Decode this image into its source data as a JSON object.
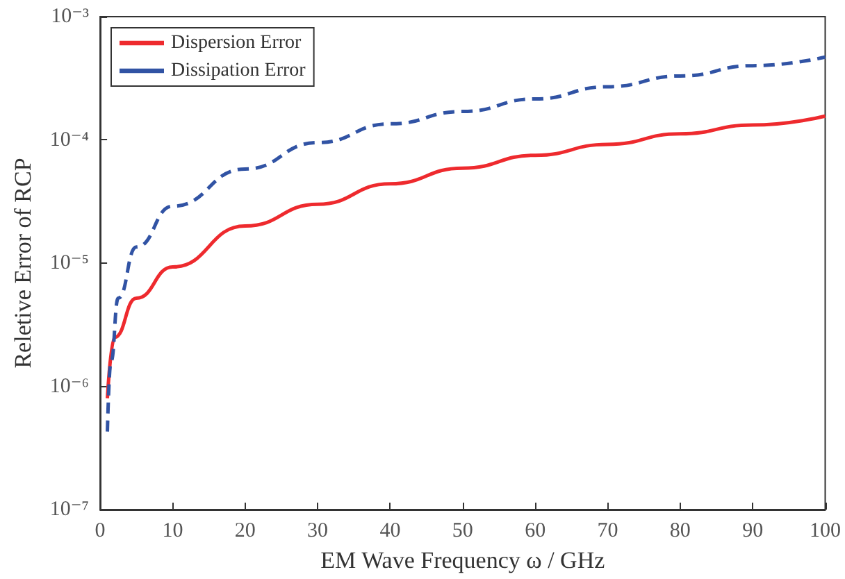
{
  "chart_data": {
    "type": "line",
    "xlabel": "EM Wave Frequency ω / GHz",
    "ylabel": "Reletive Error of RCP",
    "x": [
      1,
      2,
      5,
      10,
      20,
      30,
      40,
      50,
      60,
      70,
      80,
      90,
      100
    ],
    "series": [
      {
        "name": "Dispersion Error",
        "color": "#ee2a2e",
        "line_style": "solid",
        "values": [
          8e-07,
          2.5e-06,
          5.2e-06,
          9.3e-06,
          2e-05,
          3e-05,
          4.4e-05,
          5.9e-05,
          7.5e-05,
          9.2e-05,
          0.000112,
          0.000132,
          0.000156
        ]
      },
      {
        "name": "Dissipation Error",
        "color": "#3153a4",
        "line_style": "dashed",
        "x": [
          1,
          1.5,
          2.5,
          5,
          10,
          20,
          30,
          40,
          50,
          60,
          70,
          80,
          90,
          100
        ],
        "values": [
          4.3e-07,
          1.6e-06,
          5.2e-06,
          1.35e-05,
          2.9e-05,
          5.8e-05,
          9.5e-05,
          0.000135,
          0.00017,
          0.000215,
          0.00027,
          0.00033,
          0.0004,
          0.00047
        ]
      }
    ],
    "log": "y",
    "grid": false,
    "legend": "top left",
    "xlim": [
      0,
      100
    ],
    "xticks": [
      0,
      10,
      20,
      30,
      40,
      50,
      60,
      70,
      80,
      90,
      100
    ],
    "ylim": [
      1e-07,
      0.001
    ],
    "yticks": [
      {
        "value": 1e-07,
        "label": "10⁻⁷"
      },
      {
        "value": 1e-06,
        "label": "10⁻⁶"
      },
      {
        "value": 1e-05,
        "label": "10⁻⁵"
      },
      {
        "value": 0.0001,
        "label": "10⁻⁴"
      },
      {
        "value": 0.001,
        "label": "10⁻³"
      }
    ]
  }
}
